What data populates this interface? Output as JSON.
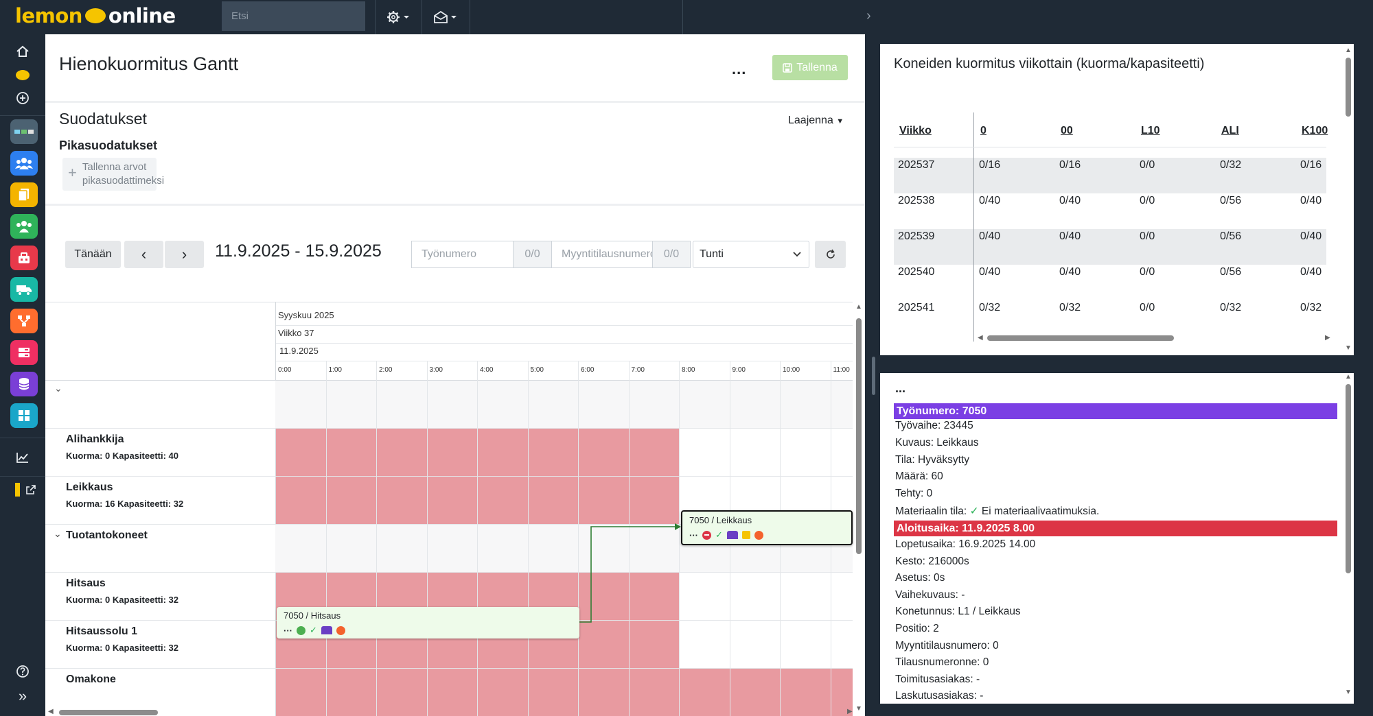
{
  "brand": {
    "logo_part1": "lemon",
    "logo_part2": "online"
  },
  "search": {
    "placeholder": "Etsi"
  },
  "page": {
    "title": "Hienokuormitus Gantt",
    "more_label": "...",
    "save_label": "Tallenna"
  },
  "filters": {
    "section_title": "Suodatukset",
    "quick_title": "Pikasuodatukset",
    "expand_label": "Laajenna",
    "save_quick_line1": "Tallenna arvot",
    "save_quick_line2": "pikasuodattimeksi"
  },
  "toolbar": {
    "today_label": "Tänään",
    "date_range": "11.9.2025 - 15.9.2025",
    "work_number_placeholder": "Työnumero",
    "work_number_count": "0/0",
    "sales_order_placeholder": "Myyntitilausnumero",
    "sales_order_count": "0/0",
    "scale_value": "Tunti"
  },
  "gantt": {
    "month": "Syyskuu 2025",
    "week": "Viikko 37",
    "day": "11.9.2025",
    "hours": [
      "0:00",
      "1:00",
      "2:00",
      "3:00",
      "4:00",
      "5:00",
      "6:00",
      "7:00",
      "8:00",
      "9:00",
      "10:00",
      "11:00"
    ],
    "rows": [
      {
        "name": "",
        "group": true,
        "collapsed_icon": "chevron-down-icon"
      },
      {
        "name": "Alihankkija",
        "load": "Kuorma: 0 Kapasiteetti: 40"
      },
      {
        "name": "Leikkaus",
        "load": "Kuorma: 16 Kapasiteetti: 32"
      },
      {
        "name": "Tuotantokoneet",
        "group": true
      },
      {
        "name": "Hitsaus",
        "load": "Kuorma: 0 Kapasiteetti: 32"
      },
      {
        "name": "Hitsaussolu 1",
        "load": "Kuorma: 0 Kapasiteetti: 32"
      },
      {
        "name": "Omakone",
        "load": ""
      }
    ],
    "tasks": [
      {
        "label": "7050 / Leikkaus"
      },
      {
        "label": "7050 / Hitsaus"
      }
    ]
  },
  "load_table": {
    "title": "Koneiden kuormitus viikottain (kuorma/kapasiteetti)",
    "columns": [
      "Viikko",
      "0",
      "00",
      "L10",
      "ALI",
      "K100"
    ],
    "rows": [
      [
        "202537",
        "0/16",
        "0/16",
        "0/0",
        "0/32",
        "0/16"
      ],
      [
        "202538",
        "0/40",
        "0/40",
        "0/0",
        "0/56",
        "0/40"
      ],
      [
        "202539",
        "0/40",
        "0/40",
        "0/0",
        "0/56",
        "0/40"
      ],
      [
        "202540",
        "0/40",
        "0/40",
        "0/0",
        "0/56",
        "0/40"
      ],
      [
        "202541",
        "0/32",
        "0/32",
        "0/0",
        "0/32",
        "0/32"
      ]
    ]
  },
  "details": {
    "more_label": "...",
    "work_number_band": "Työnumero: 7050",
    "lines_a": [
      "Työvaihe: 23445",
      "Kuvaus: Leikkaus",
      "Tila: Hyväksytty",
      "Määrä: 60",
      "Tehty: 0"
    ],
    "material_label": "Materiaalin tila:",
    "material_value": "Ei materiaalivaatimuksia.",
    "start_band": "Aloitusaika: 11.9.2025 8.00",
    "lines_b": [
      "Lopetusaika: 16.9.2025 14.00",
      "Kesto: 216000s",
      "Asetus: 0s",
      "Vaihekuvaus: -",
      "Konetunnus: L1 / Leikkaus",
      "Positio: 2",
      "Myyntitilausnumero: 0",
      "Tilausnumeronne: 0",
      "Toimitusasiakas: -",
      "Laskutusasiakas: -"
    ],
    "band_colors": {
      "work_number": "#7b3fe4",
      "start": "#dc3545"
    }
  },
  "colors": {
    "accent_yellow": "#f5c400",
    "save_green": "#b8dfa3",
    "reserved_pink": "#e89aa0",
    "task_bg": "#eefbea",
    "link_green": "#2e7d32"
  }
}
